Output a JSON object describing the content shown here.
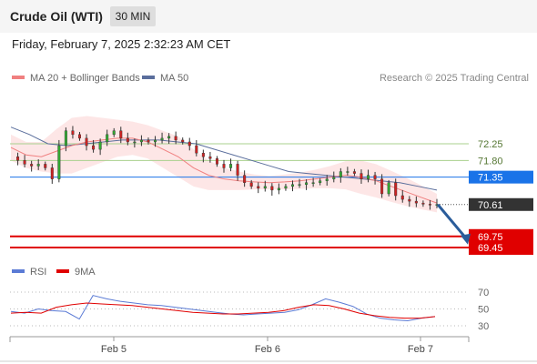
{
  "header": {
    "title": "Crude Oil (WTI)",
    "timeframe": "30 MIN"
  },
  "datetime": "Friday, February 7, 2025 2:32:23 AM CET",
  "legend": {
    "ma20": "MA 20 + Bollinger Bands",
    "ma50": "MA 50",
    "credit": "Research © 2025 Trading Central"
  },
  "rsi_legend": {
    "rsi": "RSI",
    "ma9": "9MA"
  },
  "colors": {
    "ma20": "#f08080",
    "ma50": "#5a6e9c",
    "bollinger_fill": "#fde2e2",
    "resistance": "#a8d08d",
    "pivot": "#1a73e8",
    "support": "#e00000",
    "current_price": "#333333",
    "forecast_arrow": "#2a5c9a",
    "candle_up": "#33aa33",
    "candle_down": "#cc2222",
    "rsi": "#5b7bd5",
    "rsi_ma": "#e00000"
  },
  "chart_data": {
    "type": "candlestick",
    "instrument": "Crude Oil (WTI)",
    "timeframe": "30 MIN",
    "x_ticks": [
      "Feb 5",
      "Feb 6",
      "Feb 7"
    ],
    "ylim": [
      69.2,
      72.9
    ],
    "levels": [
      {
        "value": 72.25,
        "label": "72.25",
        "kind": "resistance"
      },
      {
        "value": 71.8,
        "label": "71.80",
        "kind": "resistance"
      },
      {
        "value": 71.35,
        "label": "71.35",
        "kind": "pivot"
      },
      {
        "value": 70.61,
        "label": "70.61",
        "kind": "current"
      },
      {
        "value": 69.75,
        "label": "69.75",
        "kind": "support"
      },
      {
        "value": 69.45,
        "label": "69.45",
        "kind": "support"
      }
    ],
    "forecast": {
      "from": 70.61,
      "to": 69.75,
      "direction": "down"
    },
    "price_path": [
      71.9,
      71.8,
      71.7,
      71.65,
      71.7,
      71.6,
      71.3,
      72.2,
      72.6,
      72.5,
      72.4,
      72.2,
      72.1,
      72.3,
      72.5,
      72.6,
      72.4,
      72.3,
      72.3,
      72.35,
      72.3,
      72.35,
      72.4,
      72.45,
      72.35,
      72.3,
      72.2,
      72.0,
      71.9,
      71.85,
      71.7,
      71.6,
      71.7,
      71.4,
      71.2,
      71.1,
      71.05,
      71.1,
      71.0,
      71.05,
      71.1,
      71.15,
      71.15,
      71.2,
      71.2,
      71.25,
      71.3,
      71.35,
      71.5,
      71.5,
      71.45,
      71.3,
      71.4,
      71.3,
      70.9,
      71.2,
      70.85,
      70.75,
      70.7,
      70.65,
      70.62,
      70.6,
      70.61
    ],
    "ma20_path": [
      72.15,
      71.95,
      71.9,
      72.05,
      72.2,
      72.3,
      72.35,
      72.4,
      72.4,
      72.3,
      72.1,
      71.9,
      71.6,
      71.4,
      71.3,
      71.25,
      71.22,
      71.2,
      71.22,
      71.25,
      71.3,
      71.35,
      71.4,
      71.35,
      71.25,
      71.1,
      70.95,
      70.8,
      70.65
    ],
    "ma50_path": [
      72.7,
      72.5,
      72.25,
      72.2,
      72.25,
      72.3,
      72.35,
      72.35,
      72.35,
      72.3,
      72.25,
      72.1,
      71.95,
      71.8,
      71.65,
      71.5,
      71.45,
      71.4,
      71.35,
      71.3,
      71.25,
      71.2,
      71.1,
      71.0
    ],
    "rsi": {
      "ticks": [
        70,
        50,
        30
      ],
      "ylim": [
        25,
        80
      ],
      "rsi_path": [
        47,
        45,
        50,
        48,
        47,
        38,
        66,
        62,
        59,
        57,
        55,
        54,
        52,
        50,
        48,
        46,
        44,
        43,
        44,
        45,
        46,
        49,
        55,
        62,
        58,
        53,
        44,
        39,
        37,
        36,
        39,
        41
      ],
      "ma9_path": [
        45,
        46,
        45,
        52,
        55,
        57,
        56,
        55,
        54,
        52,
        50,
        48,
        46,
        45,
        44,
        44,
        45,
        46,
        48,
        52,
        55,
        54,
        50,
        45,
        42,
        40,
        39,
        39,
        41
      ]
    }
  }
}
